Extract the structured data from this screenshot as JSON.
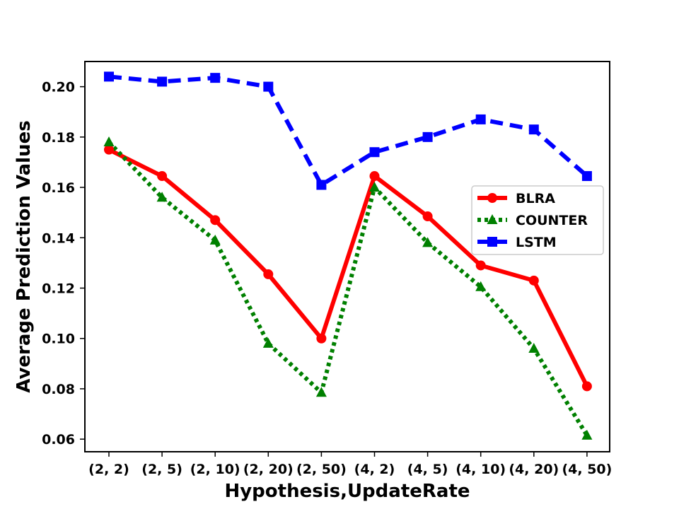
{
  "chart_data": {
    "type": "line",
    "categories": [
      "(2, 2)",
      "(2, 5)",
      "(2, 10)",
      "(2, 20)",
      "(2, 50)",
      "(4, 2)",
      "(4, 5)",
      "(4, 10)",
      "(4, 20)",
      "(4, 50)"
    ],
    "xlabel": "Hypothesis,UpdateRate",
    "ylabel": "Average Prediction Values",
    "ylim": [
      0.055,
      0.21
    ],
    "yticks": [
      0.06,
      0.08,
      0.1,
      0.12,
      0.14,
      0.16,
      0.18,
      0.2
    ],
    "ytick_labels": [
      "0.06",
      "0.08",
      "0.10",
      "0.12",
      "0.14",
      "0.16",
      "0.18",
      "0.20"
    ],
    "legend_position": "center-right",
    "grid": false,
    "series": [
      {
        "name": "BLRA",
        "color": "#ff0000",
        "line": "solid",
        "marker": "circle",
        "values": [
          0.175,
          0.1645,
          0.147,
          0.1255,
          0.1,
          0.1645,
          0.1485,
          0.129,
          0.123,
          0.081
        ]
      },
      {
        "name": "COUNTER",
        "color": "#008000",
        "line": "dotted",
        "marker": "triangle",
        "values": [
          0.178,
          0.156,
          0.139,
          0.098,
          0.0785,
          0.16,
          0.138,
          0.1205,
          0.096,
          0.0615
        ]
      },
      {
        "name": "LSTM",
        "color": "#0000ff",
        "line": "dashed",
        "marker": "square",
        "values": [
          0.204,
          0.202,
          0.2035,
          0.2,
          0.161,
          0.174,
          0.18,
          0.187,
          0.183,
          0.1645
        ]
      }
    ]
  }
}
